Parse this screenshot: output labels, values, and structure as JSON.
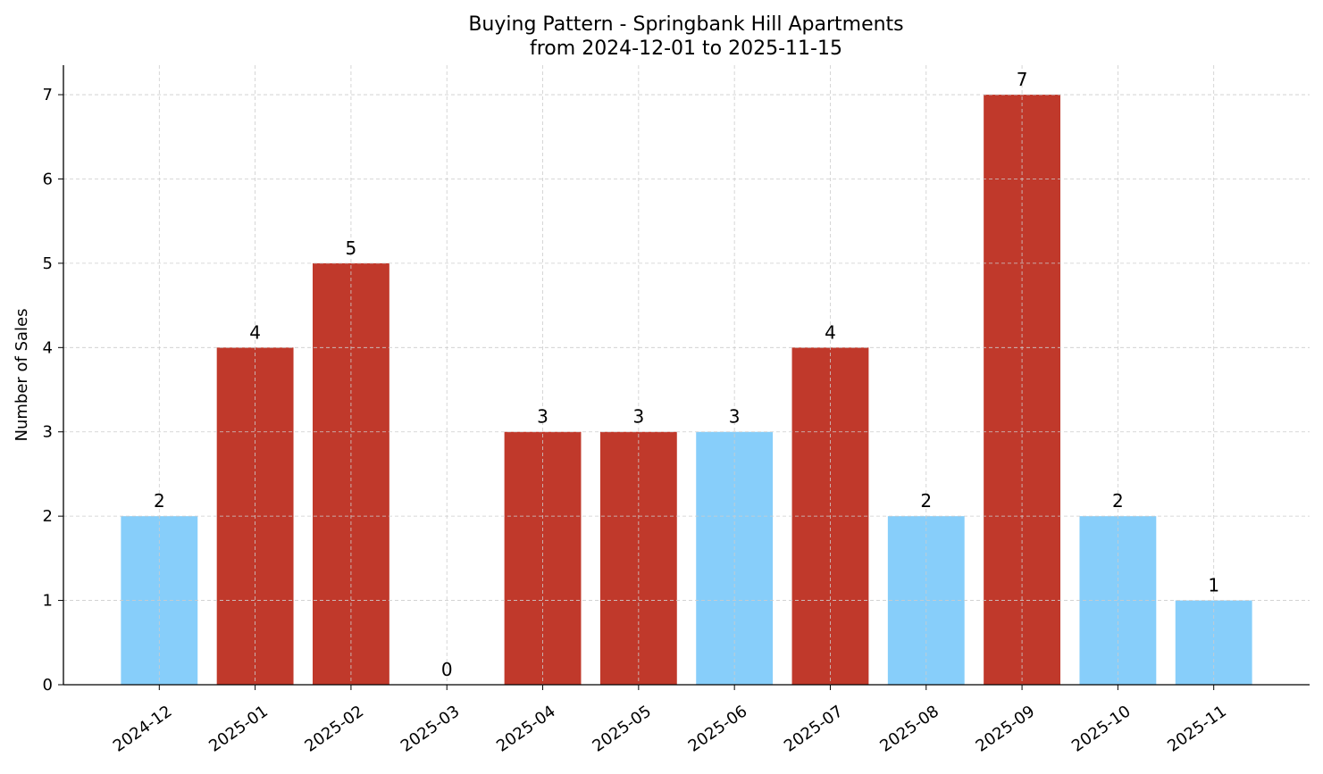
{
  "chart_data": {
    "type": "bar",
    "title": "Buying Pattern - Springbank Hill Apartments",
    "subtitle": "from 2024-12-01 to 2025-11-15",
    "xlabel": "",
    "ylabel": "Number of Sales",
    "categories": [
      "2024-12",
      "2025-01",
      "2025-02",
      "2025-03",
      "2025-04",
      "2025-05",
      "2025-06",
      "2025-07",
      "2025-08",
      "2025-09",
      "2025-10",
      "2025-11"
    ],
    "values": [
      2,
      4,
      5,
      0,
      3,
      3,
      3,
      4,
      2,
      7,
      2,
      1
    ],
    "bar_colors": [
      "#87CEFA",
      "#C0392B",
      "#C0392B",
      "#C0392B",
      "#C0392B",
      "#C0392B",
      "#87CEFA",
      "#C0392B",
      "#87CEFA",
      "#C0392B",
      "#87CEFA",
      "#87CEFA"
    ],
    "ylim": [
      0,
      7.35
    ],
    "yticks": [
      0,
      1,
      2,
      3,
      4,
      5,
      6,
      7
    ],
    "grid": true,
    "data_labels": true
  }
}
